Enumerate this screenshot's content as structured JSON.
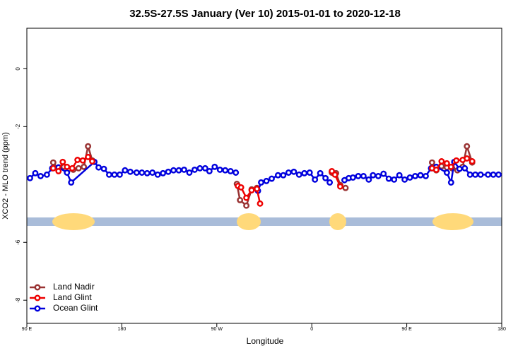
{
  "chart_data": {
    "type": "line",
    "title": "32.5S-27.5S January (Ver 10)   2015-01-01 to 2020-12-18",
    "xlabel": "Longitude",
    "ylabel": "XCO2 - MLO trend (ppm)",
    "xlim": [
      90,
      540
    ],
    "xticks": [
      {
        "value": 90,
        "label": "90 E"
      },
      {
        "value": 180,
        "label": "180"
      },
      {
        "value": 270,
        "label": "90 W"
      },
      {
        "value": 360,
        "label": "0"
      },
      {
        "value": 450,
        "label": "90 E"
      },
      {
        "value": 540,
        "label": "180"
      }
    ],
    "ylim": [
      -8.8,
      1.4
    ],
    "yticks": [
      -8,
      -6,
      -2,
      0
    ],
    "legend": "bottom-left",
    "series": [
      {
        "name": "Land Nadir",
        "color": "#993333",
        "x": [
          115,
          120,
          125,
          130,
          134,
          139,
          144,
          148,
          152,
          null,
          289,
          292,
          298,
          303,
          308,
          null,
          379,
          383,
          387,
          392,
          null,
          474,
          478,
          483,
          488,
          493,
          498,
          503,
          507,
          512
        ],
        "values": [
          -3.24,
          -3.49,
          -3.39,
          -3.46,
          -3.49,
          -3.44,
          -3.39,
          -2.68,
          -3.17,
          null,
          -3.98,
          -4.54,
          -4.73,
          -4.17,
          -4.12,
          null,
          -3.59,
          -3.61,
          -4.02,
          -4.12,
          null,
          -3.24,
          -3.51,
          -3.37,
          -3.41,
          -3.44,
          -3.51,
          -3.39,
          -2.68,
          -3.24
        ]
      },
      {
        "name": "Land Glint",
        "color": "#ee0000",
        "x": [
          115,
          120,
          124,
          128,
          133,
          138,
          143,
          148,
          152,
          null,
          290,
          293,
          298,
          303,
          308,
          311,
          null,
          379,
          382,
          387,
          null,
          474,
          478,
          483,
          488,
          492,
          497,
          503,
          507,
          512
        ],
        "values": [
          -3.44,
          -3.54,
          -3.22,
          -3.39,
          -3.44,
          -3.15,
          -3.17,
          -3.05,
          -3.2,
          null,
          -4.05,
          -4.1,
          -4.46,
          -4.2,
          -4.15,
          -4.66,
          null,
          -3.54,
          -3.66,
          -4.07,
          null,
          -3.44,
          -3.49,
          -3.2,
          -3.27,
          -3.39,
          -3.17,
          -3.15,
          -3.1,
          -3.2
        ]
      },
      {
        "name": "Ocean Glint",
        "color": "#0000dd",
        "x": [
          93,
          98,
          103,
          109,
          114,
          120,
          128,
          132,
          154,
          158,
          163,
          168,
          173,
          178,
          183,
          188,
          194,
          199,
          204,
          209,
          214,
          219,
          224,
          229,
          234,
          239,
          244,
          249,
          254,
          259,
          263,
          268,
          273,
          278,
          283,
          288,
          null,
          309,
          312,
          317,
          322,
          328,
          333,
          338,
          343,
          348,
          353,
          358,
          363,
          368,
          373,
          377,
          null,
          391,
          395,
          399,
          404,
          409,
          414,
          418,
          423,
          428,
          433,
          438,
          443,
          448,
          453,
          458,
          463,
          468,
          473,
          478,
          488,
          492,
          495,
          500,
          505,
          510,
          515,
          520,
          527,
          532,
          537
        ],
        "values": [
          -3.78,
          -3.61,
          -3.71,
          -3.66,
          -3.44,
          -3.41,
          -3.59,
          -3.93,
          -3.22,
          -3.41,
          -3.46,
          -3.66,
          -3.66,
          -3.66,
          -3.51,
          -3.56,
          -3.59,
          -3.59,
          -3.61,
          -3.59,
          -3.66,
          -3.61,
          -3.56,
          -3.51,
          -3.51,
          -3.49,
          -3.59,
          -3.49,
          -3.44,
          -3.44,
          -3.54,
          -3.39,
          -3.49,
          -3.51,
          -3.54,
          -3.59,
          null,
          -4.22,
          -3.93,
          -3.88,
          -3.8,
          -3.68,
          -3.68,
          -3.59,
          -3.56,
          -3.66,
          -3.61,
          -3.59,
          -3.83,
          -3.61,
          -3.78,
          -3.93,
          null,
          -3.85,
          -3.78,
          -3.76,
          -3.71,
          -3.71,
          -3.83,
          -3.68,
          -3.71,
          -3.63,
          -3.8,
          -3.83,
          -3.68,
          -3.83,
          -3.76,
          -3.71,
          -3.68,
          -3.71,
          -3.44,
          -3.39,
          -3.59,
          -3.93,
          -3.22,
          -3.46,
          -3.44,
          -3.66,
          -3.66,
          -3.66,
          -3.66,
          -3.66,
          -3.66
        ]
      }
    ]
  }
}
